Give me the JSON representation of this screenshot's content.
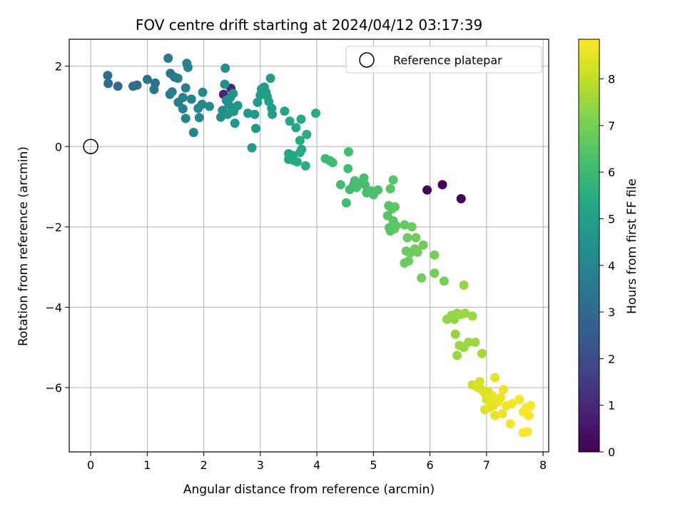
{
  "chart_data": {
    "type": "scatter",
    "title": "FOV centre drift starting at 2024/04/12 03:17:39",
    "xlabel": "Angular distance from reference (arcmin)",
    "ylabel": "Rotation from reference (arcmin)",
    "xlim": [
      -0.38,
      8.1
    ],
    "ylim": [
      -7.6,
      2.67
    ],
    "xticks": [
      0,
      1,
      2,
      3,
      4,
      5,
      6,
      7,
      8
    ],
    "xtick_labels": [
      "0",
      "1",
      "2",
      "3",
      "4",
      "5",
      "6",
      "7",
      "8"
    ],
    "yticks": [
      2,
      0,
      -2,
      -4,
      -6
    ],
    "ytick_labels": [
      "2",
      "0",
      "−2",
      "−4",
      "−6"
    ],
    "grid": true,
    "legend": {
      "placement": "top-right",
      "entries": [
        {
          "label": "Reference platepar",
          "marker": "open-circle"
        }
      ]
    },
    "reference_point": {
      "x": 0,
      "y": 0
    },
    "colorbar": {
      "label": "Hours from first FF file",
      "min": 0,
      "max": 8.85,
      "ticks": [
        0,
        1,
        2,
        3,
        4,
        5,
        6,
        7,
        8
      ],
      "tick_labels": [
        "0",
        "1",
        "2",
        "3",
        "4",
        "5",
        "6",
        "7",
        "8"
      ],
      "colormap": "viridis"
    },
    "points": [
      [
        5.95,
        -1.08,
        0.05
      ],
      [
        6.22,
        -0.95,
        0.05
      ],
      [
        6.55,
        -1.3,
        0.05
      ],
      [
        2.35,
        1.3,
        0.9
      ],
      [
        2.48,
        1.45,
        0.9
      ],
      [
        0.3,
        1.77,
        3.1
      ],
      [
        0.31,
        1.57,
        3.1
      ],
      [
        0.48,
        1.5,
        3.1
      ],
      [
        0.75,
        1.5,
        3.2
      ],
      [
        0.82,
        1.53,
        3.2
      ],
      [
        1.0,
        1.67,
        3.3
      ],
      [
        1.12,
        1.42,
        3.4
      ],
      [
        1.14,
        1.58,
        3.4
      ],
      [
        1.37,
        2.2,
        3.6
      ],
      [
        1.41,
        1.82,
        3.6
      ],
      [
        1.44,
        1.36,
        3.6
      ],
      [
        1.48,
        1.73,
        3.6
      ],
      [
        1.4,
        1.3,
        3.7
      ],
      [
        1.54,
        1.7,
        3.7
      ],
      [
        1.55,
        1.1,
        3.8
      ],
      [
        1.63,
        1.22,
        3.8
      ],
      [
        1.68,
        1.46,
        3.8
      ],
      [
        1.7,
        2.07,
        3.9
      ],
      [
        1.72,
        1.97,
        3.9
      ],
      [
        1.78,
        1.18,
        3.9
      ],
      [
        1.63,
        0.94,
        3.9
      ],
      [
        1.68,
        0.7,
        4.0
      ],
      [
        1.82,
        0.35,
        4.0
      ],
      [
        1.9,
        0.95,
        4.1
      ],
      [
        1.92,
        0.72,
        4.1
      ],
      [
        1.97,
        1.05,
        4.1
      ],
      [
        1.98,
        1.35,
        4.2
      ],
      [
        2.1,
        1.0,
        4.2
      ],
      [
        2.3,
        0.73,
        4.3
      ],
      [
        2.33,
        0.9,
        4.3
      ],
      [
        2.37,
        1.55,
        4.4
      ],
      [
        2.38,
        1.95,
        4.4
      ],
      [
        2.4,
        1.15,
        4.4
      ],
      [
        2.42,
        0.8,
        4.5
      ],
      [
        2.44,
        1.05,
        4.5
      ],
      [
        2.47,
        1.22,
        4.5
      ],
      [
        2.5,
        0.95,
        4.5
      ],
      [
        2.52,
        1.32,
        4.6
      ],
      [
        2.53,
        0.87,
        4.6
      ],
      [
        2.55,
        0.58,
        4.6
      ],
      [
        2.6,
        1.02,
        4.6
      ],
      [
        2.78,
        0.83,
        4.8
      ],
      [
        2.85,
        -0.03,
        4.8
      ],
      [
        2.9,
        0.8,
        4.8
      ],
      [
        2.92,
        0.45,
        4.8
      ],
      [
        2.95,
        1.1,
        4.9
      ],
      [
        3.0,
        1.28,
        4.9
      ],
      [
        3.02,
        1.43,
        4.9
      ],
      [
        3.07,
        1.48,
        4.9
      ],
      [
        3.1,
        1.35,
        5.0
      ],
      [
        3.12,
        1.25,
        5.0
      ],
      [
        3.15,
        1.12,
        5.0
      ],
      [
        3.18,
        1.7,
        5.0
      ],
      [
        3.2,
        0.95,
        5.0
      ],
      [
        3.21,
        0.8,
        5.0
      ],
      [
        3.43,
        0.88,
        5.2
      ],
      [
        3.5,
        -0.18,
        5.2
      ],
      [
        3.5,
        -0.32,
        5.3
      ],
      [
        3.52,
        0.63,
        5.3
      ],
      [
        3.57,
        -0.22,
        5.3
      ],
      [
        3.6,
        -0.35,
        5.3
      ],
      [
        3.63,
        0.47,
        5.3
      ],
      [
        3.65,
        -0.38,
        5.4
      ],
      [
        3.7,
        0.15,
        5.4
      ],
      [
        3.7,
        -0.15,
        5.4
      ],
      [
        3.72,
        0.68,
        5.4
      ],
      [
        3.73,
        -0.07,
        5.4
      ],
      [
        3.8,
        -0.48,
        5.5
      ],
      [
        3.82,
        0.3,
        5.5
      ],
      [
        3.98,
        0.83,
        5.5
      ],
      [
        4.15,
        -0.3,
        6.0
      ],
      [
        4.23,
        -0.35,
        6.0
      ],
      [
        4.28,
        -0.4,
        6.0
      ],
      [
        4.42,
        -0.95,
        6.1
      ],
      [
        4.52,
        -1.4,
        6.1
      ],
      [
        4.55,
        -0.55,
        6.1
      ],
      [
        4.56,
        -0.13,
        6.1
      ],
      [
        4.58,
        -1.07,
        6.1
      ],
      [
        4.65,
        -0.95,
        6.1
      ],
      [
        4.67,
        -0.85,
        6.2
      ],
      [
        4.7,
        -1.02,
        6.2
      ],
      [
        4.75,
        -0.92,
        6.2
      ],
      [
        4.83,
        -0.78,
        6.2
      ],
      [
        4.85,
        -0.95,
        6.2
      ],
      [
        4.88,
        -1.15,
        6.2
      ],
      [
        4.95,
        -1.1,
        6.3
      ],
      [
        5.0,
        -1.2,
        6.3
      ],
      [
        5.08,
        -1.08,
        6.3
      ],
      [
        5.25,
        -1.72,
        6.5
      ],
      [
        5.27,
        -1.47,
        6.5
      ],
      [
        5.28,
        -2.02,
        6.5
      ],
      [
        5.3,
        -2.1,
        6.5
      ],
      [
        5.3,
        -1.05,
        6.5
      ],
      [
        5.33,
        -1.55,
        6.5
      ],
      [
        5.35,
        -0.83,
        6.5
      ],
      [
        5.35,
        -1.85,
        6.5
      ],
      [
        5.37,
        -2.05,
        6.6
      ],
      [
        5.38,
        -1.5,
        6.6
      ],
      [
        5.4,
        -1.97,
        6.6
      ],
      [
        5.55,
        -1.95,
        6.7
      ],
      [
        5.55,
        -2.9,
        6.8
      ],
      [
        5.58,
        -2.6,
        6.8
      ],
      [
        5.6,
        -2.27,
        6.8
      ],
      [
        5.62,
        -2.85,
        6.8
      ],
      [
        5.65,
        -2.65,
        6.8
      ],
      [
        5.68,
        -2.0,
        6.8
      ],
      [
        5.73,
        -2.55,
        6.9
      ],
      [
        5.75,
        -2.27,
        6.9
      ],
      [
        5.78,
        -2.63,
        6.9
      ],
      [
        5.85,
        -3.27,
        6.9
      ],
      [
        5.88,
        -2.45,
        6.9
      ],
      [
        6.08,
        -2.7,
        7.0
      ],
      [
        6.08,
        -3.15,
        7.0
      ],
      [
        6.25,
        -3.35,
        7.0
      ],
      [
        6.3,
        -4.3,
        7.4
      ],
      [
        6.38,
        -4.2,
        7.4
      ],
      [
        6.43,
        -4.3,
        7.4
      ],
      [
        6.45,
        -4.67,
        7.4
      ],
      [
        6.48,
        -4.15,
        7.4
      ],
      [
        6.48,
        -5.2,
        7.5
      ],
      [
        6.52,
        -4.95,
        7.5
      ],
      [
        6.55,
        -4.18,
        7.5
      ],
      [
        6.6,
        -5.0,
        7.5
      ],
      [
        6.6,
        -3.45,
        7.4
      ],
      [
        6.62,
        -4.15,
        7.5
      ],
      [
        6.68,
        -4.87,
        7.5
      ],
      [
        6.75,
        -4.22,
        7.5
      ],
      [
        6.8,
        -4.87,
        7.5
      ],
      [
        6.92,
        -5.15,
        7.6
      ],
      [
        6.75,
        -5.93,
        8.2
      ],
      [
        6.85,
        -6.0,
        8.3
      ],
      [
        6.88,
        -5.85,
        8.3
      ],
      [
        6.92,
        -6.05,
        8.3
      ],
      [
        6.95,
        -6.1,
        8.4
      ],
      [
        6.97,
        -6.55,
        8.4
      ],
      [
        6.98,
        -6.15,
        8.4
      ],
      [
        7.0,
        -6.3,
        8.4
      ],
      [
        7.03,
        -6.1,
        8.4
      ],
      [
        7.05,
        -6.5,
        8.5
      ],
      [
        7.07,
        -6.35,
        8.5
      ],
      [
        7.1,
        -6.2,
        8.5
      ],
      [
        7.12,
        -6.45,
        8.5
      ],
      [
        7.15,
        -5.75,
        8.5
      ],
      [
        7.15,
        -6.7,
        8.5
      ],
      [
        7.2,
        -6.35,
        8.6
      ],
      [
        7.25,
        -6.25,
        8.6
      ],
      [
        7.28,
        -6.65,
        8.6
      ],
      [
        7.3,
        -6.05,
        8.6
      ],
      [
        7.35,
        -6.45,
        8.6
      ],
      [
        7.42,
        -6.9,
        8.7
      ],
      [
        7.45,
        -6.4,
        8.7
      ],
      [
        7.58,
        -6.3,
        8.7
      ],
      [
        7.65,
        -6.6,
        8.8
      ],
      [
        7.65,
        -7.12,
        8.8
      ],
      [
        7.7,
        -6.5,
        8.8
      ],
      [
        7.72,
        -7.1,
        8.8
      ],
      [
        7.75,
        -6.7,
        8.8
      ],
      [
        7.78,
        -6.45,
        8.8
      ]
    ]
  }
}
